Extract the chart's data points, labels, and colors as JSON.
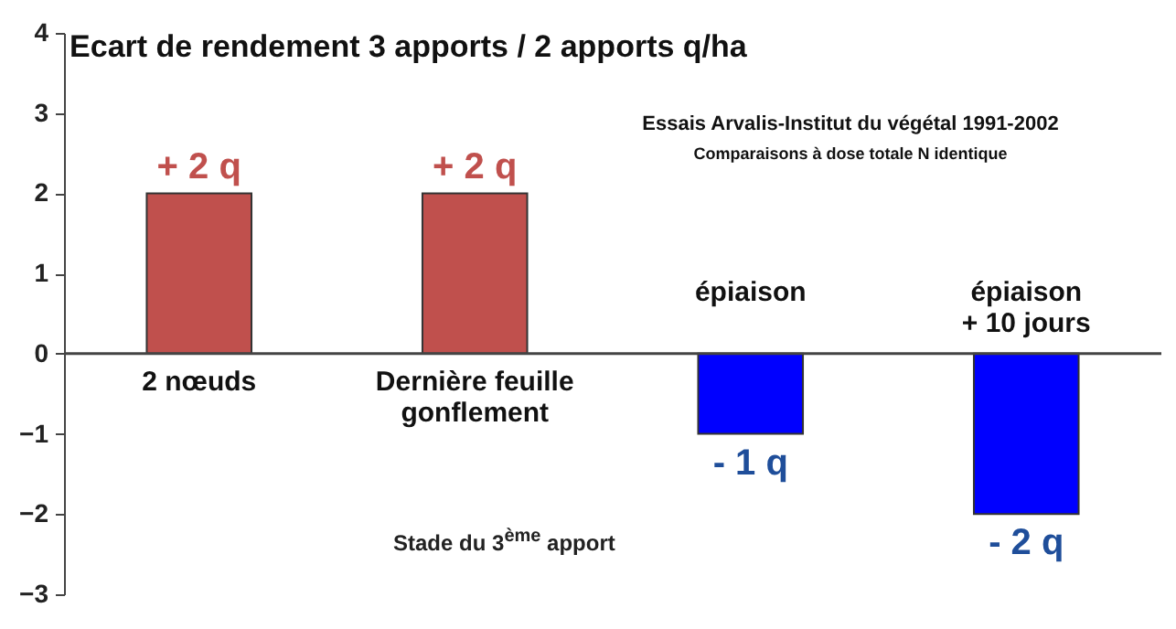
{
  "chart_data": {
    "type": "bar",
    "title": "Ecart de rendement 3 apports / 2 apports    q/ha",
    "subtitle": "Essais Arvalis-Institut du végétal 1991-2002",
    "annotations": [
      "Comparaisons à dose totale N identique",
      "Stade du 3$^{ème}$ apport"
    ],
    "categories": [
      "2 nœuds",
      "Dernière feuille\ngonflement",
      "épiaison",
      "épiaison\n+ 10 jours"
    ],
    "values": [
      2,
      2,
      -1,
      -2
    ],
    "colors": [
      "#c0504d",
      "#c0504d",
      "#0000ff",
      "#0000ff"
    ],
    "value_labels": [
      "+ 2 q",
      "+ 2 q",
      "- 1 q",
      "- 2 q"
    ],
    "ylim": [
      -3,
      4
    ],
    "yticks": [
      -3,
      -2,
      -1,
      0,
      1,
      2,
      3,
      4
    ],
    "grid": false,
    "legend": false
  }
}
